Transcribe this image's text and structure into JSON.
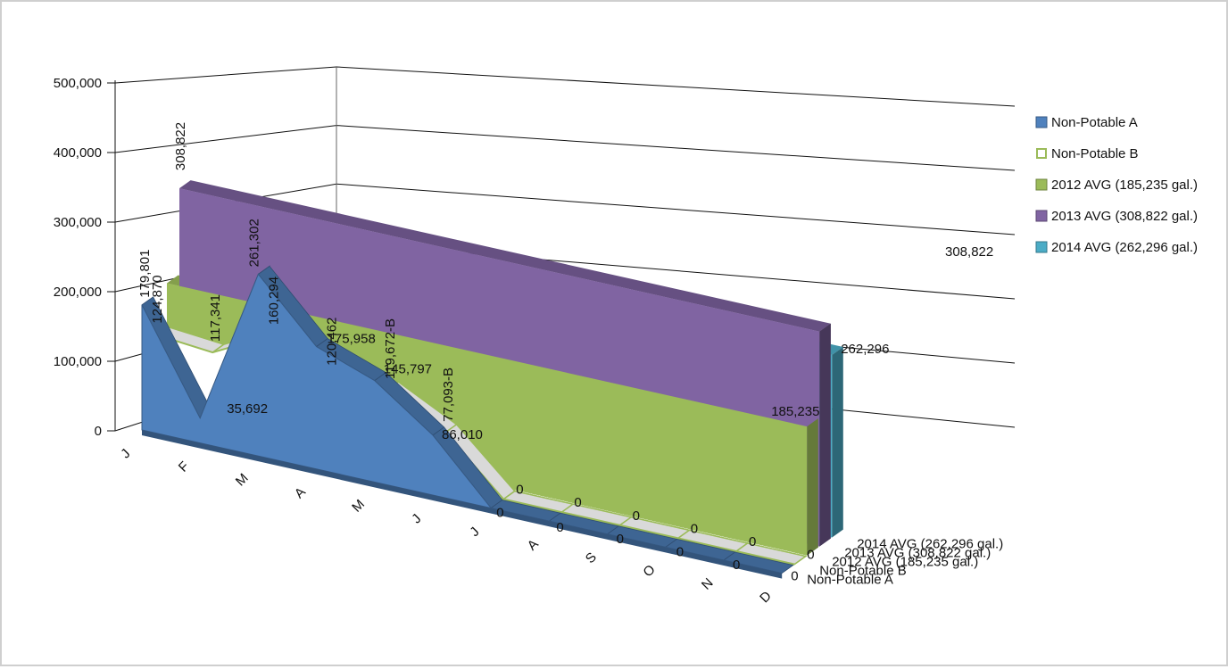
{
  "chart_data": {
    "type": "area",
    "view": "3d",
    "categories": [
      "J",
      "F",
      "M",
      "A",
      "M",
      "J",
      "J",
      "A",
      "S",
      "O",
      "N",
      "D"
    ],
    "yaxis": {
      "min": 0,
      "max": 500000,
      "step": 100000,
      "tick_labels": [
        "0",
        "100,000",
        "200,000",
        "300,000",
        "400,000",
        "500,000"
      ]
    },
    "grid": true,
    "legend_position": "right",
    "series": [
      {
        "name": "Non-Potable A",
        "color": "#4f81bd",
        "values": [
          179801,
          35692,
          261302,
          175958,
          145797,
          86010,
          0,
          0,
          0,
          0,
          0,
          0
        ],
        "labels": [
          "179,801",
          "35,692",
          "261,302",
          "175,958",
          "145,797",
          "86,010",
          "0",
          "0",
          "0",
          "0",
          "0",
          "0"
        ]
      },
      {
        "name": "Non-Potable B",
        "color": "#9bbb59",
        "values": [
          124870,
          117341,
          160294,
          120462,
          119672,
          77093,
          0,
          0,
          0,
          0,
          0,
          0
        ],
        "labels": [
          "124,870",
          "117,341",
          "160,294",
          "120,462",
          "119,672-B",
          "77,093-B",
          "0",
          "0",
          "0",
          "0",
          "0",
          "0"
        ]
      },
      {
        "name": "2012 AVG (185,235 gal.)",
        "color": "#9bbb59",
        "value": 185235,
        "label": "185,235"
      },
      {
        "name": "2013 AVG (308,822 gal.)",
        "color": "#8064a2",
        "value": 308822,
        "labels": [
          "308,822",
          "308,822"
        ]
      },
      {
        "name": "2014 AVG (262,296 gal.)",
        "color": "#4bacc6",
        "value": 262296,
        "label": "262,296"
      }
    ]
  }
}
